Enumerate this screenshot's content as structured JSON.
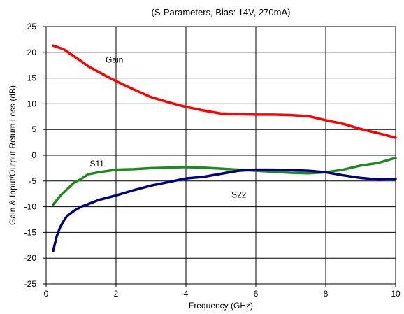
{
  "chart_data": {
    "type": "line",
    "title": "(S-Parameters, Bias: 14V, 270mA)",
    "xlabel": "Frequency (GHz)",
    "ylabel": "Gain & Input/Output Return Loss (dB)",
    "xlim": [
      0,
      10
    ],
    "ylim": [
      -25,
      25
    ],
    "xticks": [
      0,
      2,
      4,
      6,
      8,
      10
    ],
    "yticks": [
      -25,
      -20,
      -15,
      -10,
      -5,
      0,
      5,
      10,
      15,
      20,
      25
    ],
    "grid": true,
    "series": [
      {
        "name": "Gain",
        "color": "#ff0000",
        "x": [
          0.2,
          0.5,
          0.8,
          1.0,
          1.2,
          1.5,
          1.8,
          2.0,
          2.5,
          3.0,
          3.5,
          4.0,
          4.5,
          5.0,
          5.5,
          6.0,
          6.5,
          7.0,
          7.5,
          8.0,
          8.5,
          9.0,
          9.5,
          10.0
        ],
        "values": [
          21.3,
          20.6,
          19.2,
          18.3,
          17.3,
          16.2,
          15.1,
          14.4,
          12.8,
          11.3,
          10.3,
          9.4,
          8.7,
          8.1,
          8.0,
          7.9,
          7.9,
          7.8,
          7.6,
          6.8,
          6.1,
          5.1,
          4.3,
          3.4
        ]
      },
      {
        "name": "S11",
        "color": "#1e8a1e",
        "x": [
          0.2,
          0.4,
          0.6,
          0.8,
          1.0,
          1.2,
          1.5,
          2.0,
          2.5,
          3.0,
          3.5,
          4.0,
          4.5,
          5.0,
          5.5,
          6.0,
          6.5,
          7.0,
          7.5,
          8.0,
          8.5,
          9.0,
          9.5,
          10.0
        ],
        "values": [
          -9.6,
          -7.9,
          -6.6,
          -5.3,
          -4.6,
          -3.7,
          -3.3,
          -2.8,
          -2.7,
          -2.5,
          -2.4,
          -2.3,
          -2.4,
          -2.6,
          -2.8,
          -3.0,
          -3.2,
          -3.4,
          -3.5,
          -3.3,
          -2.8,
          -2.0,
          -1.5,
          -0.5
        ]
      },
      {
        "name": "S22",
        "color": "#00007f",
        "x": [
          0.2,
          0.3,
          0.4,
          0.5,
          0.6,
          0.8,
          1.0,
          1.2,
          1.5,
          2.0,
          2.5,
          3.0,
          3.5,
          4.0,
          4.5,
          5.0,
          5.5,
          6.0,
          6.5,
          7.0,
          7.5,
          8.0,
          8.5,
          9.0,
          9.5,
          10.0
        ],
        "values": [
          -18.6,
          -15.8,
          -14.0,
          -12.8,
          -11.8,
          -10.8,
          -10.0,
          -9.5,
          -8.7,
          -7.8,
          -6.8,
          -5.9,
          -5.2,
          -4.5,
          -4.2,
          -3.6,
          -3.0,
          -2.8,
          -2.8,
          -2.9,
          -3.0,
          -3.3,
          -3.9,
          -4.4,
          -4.7,
          -4.6
        ]
      }
    ],
    "annotations": [
      {
        "text": "Gain",
        "x": 1.7,
        "y": 18.0
      },
      {
        "text": "S11",
        "x": 1.25,
        "y": -2.2
      },
      {
        "text": "S22",
        "x": 5.3,
        "y": -8.2
      }
    ]
  }
}
